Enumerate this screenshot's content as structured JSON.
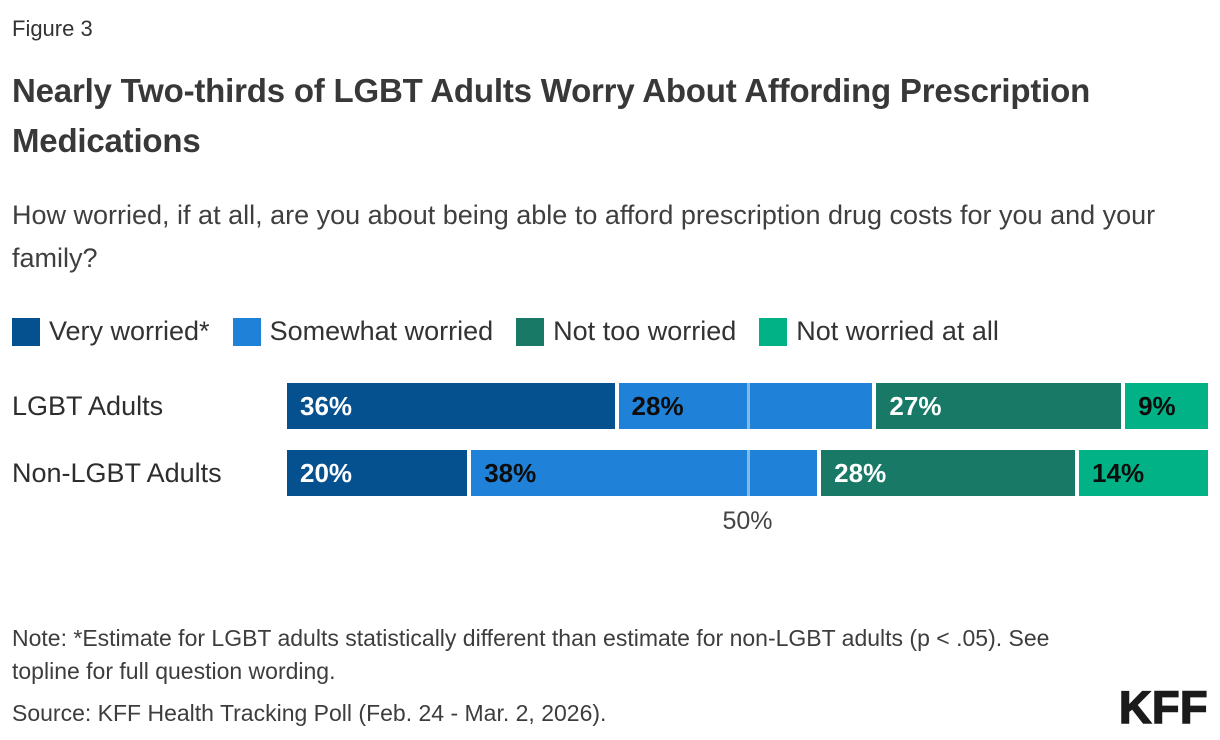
{
  "figure_label": "Figure 3",
  "title": "Nearly Two-thirds of LGBT Adults Worry About Affording Prescription Medications",
  "question": "How worried, if at all, are you about being able to afford prescription drug costs for you and your family?",
  "legend": [
    {
      "label": "Very worried*",
      "color": "#05508e"
    },
    {
      "label": "Somewhat worried",
      "color": "#2081d8"
    },
    {
      "label": "Not too worried",
      "color": "#187a66"
    },
    {
      "label": "Not worried at all",
      "color": "#00b286"
    }
  ],
  "chart_data": {
    "type": "bar",
    "stacked": true,
    "orientation": "horizontal",
    "categories": [
      "LGBT Adults",
      "Non-LGBT Adults"
    ],
    "series": [
      {
        "name": "Very worried*",
        "color": "#05508e",
        "label_color": "#ffffff",
        "values": [
          36,
          20
        ]
      },
      {
        "name": "Somewhat worried",
        "color": "#2081d8",
        "label_color": "#0d0d0d",
        "values": [
          28,
          38
        ]
      },
      {
        "name": "Not too worried",
        "color": "#187a66",
        "label_color": "#ffffff",
        "values": [
          27,
          28
        ]
      },
      {
        "name": "Not worried at all",
        "color": "#00b286",
        "label_color": "#0d0d0d",
        "values": [
          9,
          14
        ]
      }
    ],
    "value_suffix": "%",
    "axis": {
      "xlim": [
        0,
        100
      ],
      "gridline_at": 50,
      "tick_label": "50%"
    },
    "legend_position": "top",
    "grid": "single-50%-line"
  },
  "note": "Note: *Estimate for LGBT adults statistically different than estimate for non-LGBT adults (p < .05). See topline for full question wording.",
  "source": "Source: KFF Health Tracking Poll (Feb. 24 - Mar. 2, 2026).",
  "logo_text": "KFF"
}
